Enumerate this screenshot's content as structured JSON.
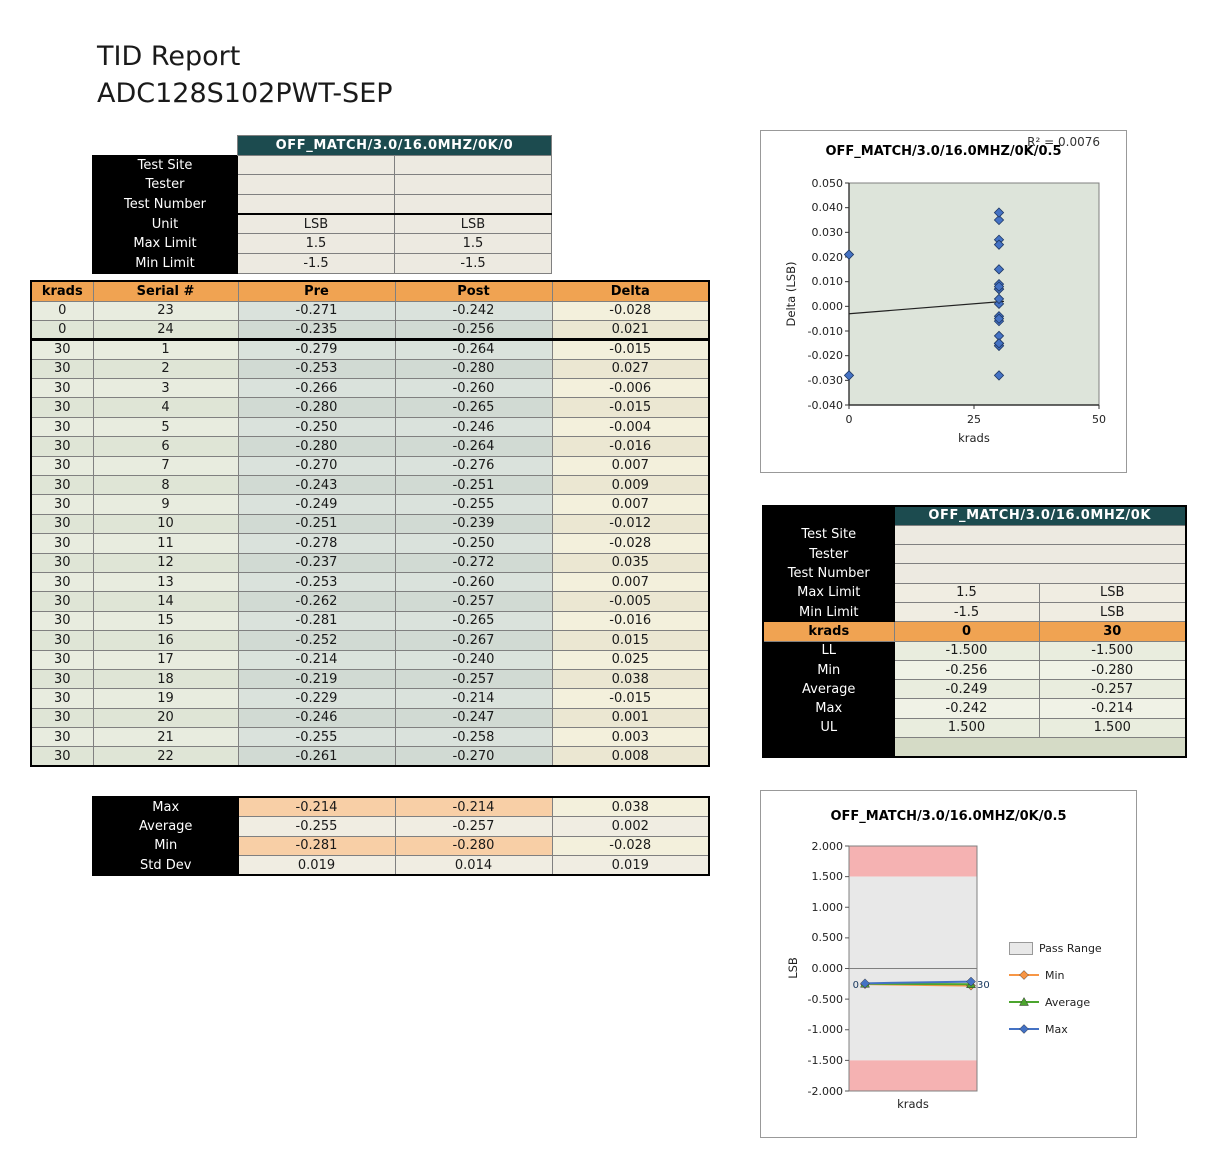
{
  "page": {
    "title_line1": "TID Report",
    "title_line2": "ADC128S102PWT-SEP"
  },
  "colors": {
    "teal": "#1C4B4F",
    "orange": "#F0A352",
    "info_cell": "#EDEAE1",
    "krads_odd": "#E8ECDF",
    "krads_even": "#DFE5D6",
    "pre_odd": "#DAE2DC",
    "pre_even": "#D1DAD3",
    "delta_odd": "#F3F0DC",
    "delta_even": "#EBE7D2",
    "sum_accent": "#F8CFA6",
    "sum_plain": "#F0EDE2",
    "stat_odd": "#E9EDDE",
    "stat_even": "#F0F2E6",
    "green_strip": "#D5DBC6",
    "plot_bg": "#DDE4DA"
  },
  "main_table": {
    "header": "OFF_MATCH/3.0/16.0MHZ/0K/0",
    "info_rows": [
      {
        "label": "Test Site",
        "pre": "",
        "post": ""
      },
      {
        "label": "Tester",
        "pre": "",
        "post": ""
      },
      {
        "label": "Test Number",
        "pre": "",
        "post": ""
      },
      {
        "label": "Unit",
        "pre": "LSB",
        "post": "LSB"
      },
      {
        "label": "Max Limit",
        "pre": "1.5",
        "post": "1.5"
      },
      {
        "label": "Min Limit",
        "pre": "-1.5",
        "post": "-1.5"
      }
    ],
    "columns": [
      "krads",
      "Serial #",
      "Pre",
      "Post",
      "Delta"
    ],
    "rows": [
      [
        "0",
        "23",
        "-0.271",
        "-0.242",
        "-0.028"
      ],
      [
        "0",
        "24",
        "-0.235",
        "-0.256",
        "0.021"
      ],
      [
        "30",
        "1",
        "-0.279",
        "-0.264",
        "-0.015"
      ],
      [
        "30",
        "2",
        "-0.253",
        "-0.280",
        "0.027"
      ],
      [
        "30",
        "3",
        "-0.266",
        "-0.260",
        "-0.006"
      ],
      [
        "30",
        "4",
        "-0.280",
        "-0.265",
        "-0.015"
      ],
      [
        "30",
        "5",
        "-0.250",
        "-0.246",
        "-0.004"
      ],
      [
        "30",
        "6",
        "-0.280",
        "-0.264",
        "-0.016"
      ],
      [
        "30",
        "7",
        "-0.270",
        "-0.276",
        "0.007"
      ],
      [
        "30",
        "8",
        "-0.243",
        "-0.251",
        "0.009"
      ],
      [
        "30",
        "9",
        "-0.249",
        "-0.255",
        "0.007"
      ],
      [
        "30",
        "10",
        "-0.251",
        "-0.239",
        "-0.012"
      ],
      [
        "30",
        "11",
        "-0.278",
        "-0.250",
        "-0.028"
      ],
      [
        "30",
        "12",
        "-0.237",
        "-0.272",
        "0.035"
      ],
      [
        "30",
        "13",
        "-0.253",
        "-0.260",
        "0.007"
      ],
      [
        "30",
        "14",
        "-0.262",
        "-0.257",
        "-0.005"
      ],
      [
        "30",
        "15",
        "-0.281",
        "-0.265",
        "-0.016"
      ],
      [
        "30",
        "16",
        "-0.252",
        "-0.267",
        "0.015"
      ],
      [
        "30",
        "17",
        "-0.214",
        "-0.240",
        "0.025"
      ],
      [
        "30",
        "18",
        "-0.219",
        "-0.257",
        "0.038"
      ],
      [
        "30",
        "19",
        "-0.229",
        "-0.214",
        "-0.015"
      ],
      [
        "30",
        "20",
        "-0.246",
        "-0.247",
        "0.001"
      ],
      [
        "30",
        "21",
        "-0.255",
        "-0.258",
        "0.003"
      ],
      [
        "30",
        "22",
        "-0.261",
        "-0.270",
        "0.008"
      ]
    ],
    "summary": [
      {
        "label": "Max",
        "pre": "-0.214",
        "post": "-0.214",
        "delta": "0.038"
      },
      {
        "label": "Average",
        "pre": "-0.255",
        "post": "-0.257",
        "delta": "0.002"
      },
      {
        "label": "Min",
        "pre": "-0.281",
        "post": "-0.280",
        "delta": "-0.028"
      },
      {
        "label": "Std Dev",
        "pre": "0.019",
        "post": "0.014",
        "delta": "0.019"
      }
    ]
  },
  "summary_table": {
    "header": "OFF_MATCH/3.0/16.0MHZ/0K",
    "info_rows": [
      {
        "label": "Test Site",
        "value": ""
      },
      {
        "label": "Tester",
        "value": ""
      },
      {
        "label": "Test Number",
        "value": ""
      }
    ],
    "limit_rows": [
      {
        "label": "Max Limit",
        "value": "1.5",
        "unit": "LSB"
      },
      {
        "label": "Min Limit",
        "value": "-1.5",
        "unit": "LSB"
      }
    ],
    "krads_row": {
      "label": "krads",
      "col1": "0",
      "col2": "30"
    },
    "stat_rows": [
      {
        "label": "LL",
        "col1": "-1.500",
        "col2": "-1.500"
      },
      {
        "label": "Min",
        "col1": "-0.256",
        "col2": "-0.280"
      },
      {
        "label": "Average",
        "col1": "-0.249",
        "col2": "-0.257"
      },
      {
        "label": "Max",
        "col1": "-0.242",
        "col2": "-0.214"
      },
      {
        "label": "UL",
        "col1": "1.500",
        "col2": "1.500"
      }
    ]
  },
  "chart_data": [
    {
      "type": "scatter",
      "title": "OFF_MATCH/3.0/16.0MHZ/0K/0.5",
      "annotation": "R² = 0.0076",
      "xlabel": "krads",
      "ylabel": "Delta (LSB)",
      "xlim": [
        0,
        50
      ],
      "ylim": [
        -0.04,
        0.05
      ],
      "yticks": [
        0.05,
        0.04,
        0.03,
        0.02,
        0.01,
        0.0,
        -0.01,
        -0.02,
        -0.03,
        -0.04
      ],
      "xticks": [
        0,
        25,
        50
      ],
      "marker_color": "#4472C4",
      "points": [
        [
          0,
          -0.028
        ],
        [
          0,
          0.021
        ],
        [
          30,
          -0.015
        ],
        [
          30,
          0.027
        ],
        [
          30,
          -0.006
        ],
        [
          30,
          -0.015
        ],
        [
          30,
          -0.004
        ],
        [
          30,
          -0.016
        ],
        [
          30,
          0.007
        ],
        [
          30,
          0.009
        ],
        [
          30,
          0.007
        ],
        [
          30,
          -0.012
        ],
        [
          30,
          -0.028
        ],
        [
          30,
          0.035
        ],
        [
          30,
          0.007
        ],
        [
          30,
          -0.005
        ],
        [
          30,
          -0.016
        ],
        [
          30,
          0.015
        ],
        [
          30,
          0.025
        ],
        [
          30,
          0.038
        ],
        [
          30,
          -0.015
        ],
        [
          30,
          0.001
        ],
        [
          30,
          0.003
        ],
        [
          30,
          0.008
        ]
      ],
      "trendline": {
        "x": [
          0,
          31
        ],
        "y": [
          -0.003,
          0.002
        ]
      }
    },
    {
      "type": "line",
      "title": "OFF_MATCH/3.0/16.0MHZ/0K/0.5",
      "xlabel": "krads",
      "ylabel": "LSB",
      "ylim": [
        -2.0,
        2.0
      ],
      "yticks": [
        2.0,
        1.5,
        1.0,
        0.5,
        0.0,
        -0.5,
        -1.0,
        -1.5,
        -2.0
      ],
      "pass_range": [
        -1.5,
        1.5
      ],
      "pass_color": "#E8E8E8",
      "fail_color": "#F5B2B2",
      "x": [
        0,
        30
      ],
      "point_labels": [
        "0",
        "30"
      ],
      "series": [
        {
          "name": "Min",
          "color": "#F79646",
          "marker": "diamond",
          "values": [
            -0.256,
            -0.28
          ]
        },
        {
          "name": "Average",
          "color": "#4CA52E",
          "marker": "triangle",
          "values": [
            -0.249,
            -0.257
          ]
        },
        {
          "name": "Max",
          "color": "#4472C4",
          "marker": "diamond",
          "values": [
            -0.242,
            -0.214
          ]
        }
      ],
      "legend": [
        "Pass Range",
        "Min",
        "Average",
        "Max"
      ]
    }
  ]
}
